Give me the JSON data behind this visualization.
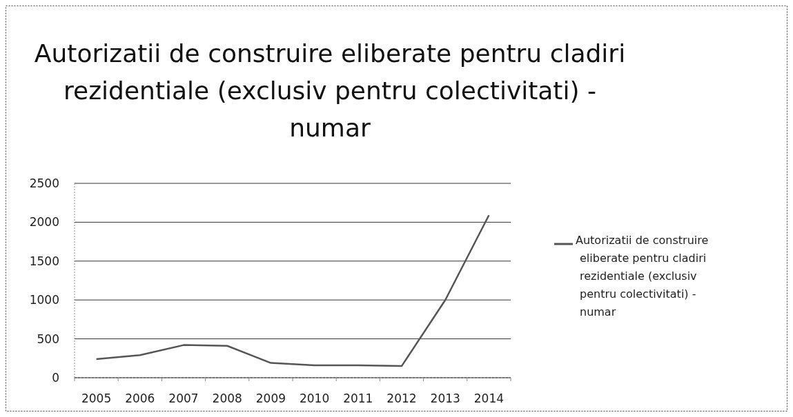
{
  "chart_data": {
    "type": "line",
    "title": "Autorizatii de construire eliberate pentru cladiri rezidentiale (exclusiv pentru colectivitati) - numar",
    "categories": [
      "2005",
      "2006",
      "2007",
      "2008",
      "2009",
      "2010",
      "2011",
      "2012",
      "2013",
      "2014"
    ],
    "series": [
      {
        "name": "Autorizatii de construire eliberate pentru cladiri rezidentiale (exclusiv pentru colectivitati) - numar",
        "color": "#555555",
        "values": [
          240,
          290,
          420,
          410,
          190,
          160,
          160,
          150,
          1000,
          2090
        ]
      }
    ],
    "ylim": [
      0,
      2500
    ],
    "yticks": [
      0,
      500,
      1000,
      1500,
      2000,
      2500
    ],
    "grid": "y",
    "legend": "right",
    "marker": "none",
    "line_style": "solid"
  }
}
